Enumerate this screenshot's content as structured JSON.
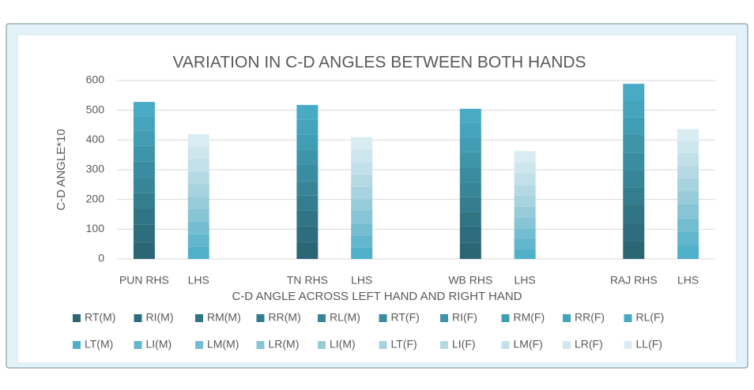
{
  "chart_data": {
    "type": "stacked_bar",
    "title": "VARIATION IN C-D ANGLES BETWEEN BOTH HANDS",
    "x_label": "C-D ANGLE ACROSS LEFT HAND AND RIGHT HAND",
    "y_label": "C-D ANGLE*10",
    "categories": [
      "PUN RHS",
      "LHS",
      null,
      "TN RHS",
      "LHS",
      null,
      "WB RHS",
      "LHS",
      null,
      "RAJ RHS",
      "LHS"
    ],
    "ylim": [
      0,
      600
    ],
    "yticks": [
      0,
      100,
      200,
      300,
      400,
      500,
      600
    ],
    "grid": true,
    "legend": "bottom",
    "series": [
      {
        "name": "RT(M)",
        "color": "#2b6675",
        "values": [
          58,
          null,
          null,
          56,
          null,
          null,
          55,
          null,
          null,
          60,
          null
        ]
      },
      {
        "name": "RI(M)",
        "color": "#2e6d7d",
        "values": [
          58,
          null,
          null,
          55,
          null,
          null,
          54,
          null,
          null,
          62,
          null
        ]
      },
      {
        "name": "RM(M)",
        "color": "#317585",
        "values": [
          54,
          null,
          null,
          52,
          null,
          null,
          50,
          null,
          null,
          60,
          null
        ]
      },
      {
        "name": "RR(M)",
        "color": "#347d8e",
        "values": [
          52,
          null,
          null,
          50,
          null,
          null,
          49,
          null,
          null,
          58,
          null
        ]
      },
      {
        "name": "RL(M)",
        "color": "#378597",
        "values": [
          50,
          null,
          null,
          49,
          null,
          null,
          48,
          null,
          null,
          56,
          null
        ]
      },
      {
        "name": "RT(F)",
        "color": "#3a8da0",
        "values": [
          55,
          null,
          null,
          54,
          null,
          null,
          52,
          null,
          null,
          62,
          null
        ]
      },
      {
        "name": "RI(F)",
        "color": "#3e95a9",
        "values": [
          53,
          null,
          null,
          52,
          null,
          null,
          51,
          null,
          null,
          60,
          null
        ]
      },
      {
        "name": "RM(F)",
        "color": "#419db3",
        "values": [
          52,
          null,
          null,
          51,
          null,
          null,
          50,
          null,
          null,
          58,
          null
        ]
      },
      {
        "name": "RR(F)",
        "color": "#45a4bc",
        "values": [
          48,
          null,
          null,
          50,
          null,
          null,
          48,
          null,
          null,
          55,
          null
        ]
      },
      {
        "name": "RL(F)",
        "color": "#48aac4",
        "values": [
          48,
          null,
          null,
          49,
          null,
          null,
          48,
          null,
          null,
          58,
          null
        ]
      },
      {
        "name": "LT(M)",
        "color": "#4fb0c9",
        "values": [
          null,
          40,
          null,
          null,
          38,
          null,
          null,
          33,
          null,
          null,
          45
        ]
      },
      {
        "name": "LI(M)",
        "color": "#62b6cd",
        "values": [
          null,
          43,
          null,
          null,
          41,
          null,
          null,
          35,
          null,
          null,
          47
        ]
      },
      {
        "name": "LM(M)",
        "color": "#74bdd1",
        "values": [
          null,
          42,
          null,
          null,
          40,
          null,
          null,
          34,
          null,
          null,
          44
        ]
      },
      {
        "name": "LR(M)",
        "color": "#86c4d6",
        "values": [
          null,
          44,
          null,
          null,
          43,
          null,
          null,
          38,
          null,
          null,
          48
        ]
      },
      {
        "name": "LI(M)",
        "color": "#97cbda",
        "values": [
          null,
          40,
          null,
          null,
          39,
          null,
          null,
          36,
          null,
          null,
          43
        ]
      },
      {
        "name": "LT(F)",
        "color": "#a7d2df",
        "values": [
          null,
          42,
          null,
          null,
          41,
          null,
          null,
          37,
          null,
          null,
          44
        ]
      },
      {
        "name": "LI(F)",
        "color": "#b5d9e4",
        "values": [
          null,
          41,
          null,
          null,
          40,
          null,
          null,
          36,
          null,
          null,
          42
        ]
      },
      {
        "name": "LM(F)",
        "color": "#c2e0e9",
        "values": [
          null,
          44,
          null,
          null,
          44,
          null,
          null,
          39,
          null,
          null,
          43
        ]
      },
      {
        "name": "LR(F)",
        "color": "#cee6ed",
        "values": [
          null,
          42,
          null,
          null,
          42,
          null,
          null,
          38,
          null,
          null,
          41
        ]
      },
      {
        "name": "LL(F)",
        "color": "#d9ecf2",
        "values": [
          null,
          42,
          null,
          null,
          42,
          null,
          null,
          37,
          null,
          null,
          40
        ]
      }
    ]
  }
}
